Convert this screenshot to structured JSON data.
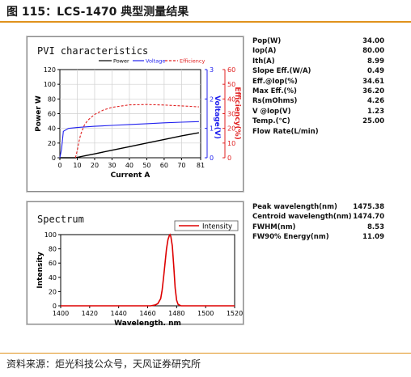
{
  "figure_title": "图 115：LCS-1470 典型测量结果",
  "source": "资料来源：炬光科技公众号，天风证券研究所",
  "colors": {
    "accent_rule": "#e0921c",
    "power": "#000000",
    "voltage": "#2020ee",
    "efficiency": "#e02020",
    "intensity": "#dd0000"
  },
  "pvi": {
    "title": "PVI characteristics",
    "parameters": [
      {
        "label": "Pop(W)",
        "value": "34.00"
      },
      {
        "label": "Iop(A)",
        "value": "80.00"
      },
      {
        "label": "Ith(A)",
        "value": "8.99"
      },
      {
        "label": "Slope Eff.(W/A)",
        "value": "0.49"
      },
      {
        "label": "Eff.@Iop(%)",
        "value": "34.61"
      },
      {
        "label": "Max Eff.(%)",
        "value": "36.20"
      },
      {
        "label": "Rs(mOhms)",
        "value": "4.26"
      },
      {
        "label": "V @Iop(V)",
        "value": "1.23"
      },
      {
        "label": "Temp.(℃)",
        "value": "25.00"
      },
      {
        "label": "Flow Rate(L/min)",
        "value": ""
      }
    ]
  },
  "spectrum": {
    "title": "Spectrum",
    "parameters": [
      {
        "label": "Peak wavelength(nm)",
        "value": "1475.38"
      },
      {
        "label": "Centroid wavelength(nm)",
        "value": "1474.70"
      },
      {
        "label": "FWHM(nm)",
        "value": "8.53"
      },
      {
        "label": "FW90% Energy(nm)",
        "value": "11.09"
      }
    ]
  },
  "chart_data": [
    {
      "type": "line",
      "title": "PVI characteristics",
      "xlabel": "Current A",
      "ylabel": "Power W",
      "y2label": "Voltage(V)",
      "y3label": "Efficiency(%)",
      "xlim": [
        0,
        81
      ],
      "ylim": [
        0,
        120
      ],
      "y2lim": [
        0,
        3
      ],
      "y3lim": [
        0,
        60
      ],
      "x_ticks": [
        0,
        10,
        20,
        30,
        40,
        50,
        60,
        70,
        81
      ],
      "y_ticks": [
        0,
        20,
        40,
        60,
        80,
        100,
        120
      ],
      "y2_ticks": [
        0,
        1,
        2,
        3
      ],
      "y3_ticks": [
        0,
        10,
        20,
        30,
        40,
        50,
        60
      ],
      "legend_position": "top",
      "grid": true,
      "series": [
        {
          "name": "Power",
          "axis": "left",
          "style": "solid",
          "color": "#000000",
          "x": [
            0,
            9,
            10,
            15,
            20,
            30,
            40,
            50,
            60,
            70,
            80
          ],
          "y": [
            0,
            0,
            0.5,
            3,
            5.3,
            10.2,
            15.1,
            20,
            24.9,
            29.8,
            34
          ]
        },
        {
          "name": "Voltage",
          "axis": "right1",
          "style": "solid",
          "color": "#2020ee",
          "x": [
            0,
            1,
            2,
            5,
            10,
            20,
            30,
            40,
            50,
            60,
            70,
            80
          ],
          "y": [
            0,
            0.3,
            0.9,
            1.0,
            1.03,
            1.07,
            1.1,
            1.13,
            1.16,
            1.19,
            1.21,
            1.23
          ]
        },
        {
          "name": "Efficiency",
          "axis": "right2",
          "style": "dashed",
          "color": "#e02020",
          "x": [
            9,
            10,
            11,
            12,
            14,
            16,
            20,
            25,
            30,
            40,
            50,
            60,
            70,
            80
          ],
          "y": [
            0,
            5,
            11,
            16,
            22,
            25.5,
            29.5,
            32.5,
            34.3,
            36,
            36.2,
            35.9,
            35.3,
            34.6
          ]
        }
      ]
    },
    {
      "type": "line",
      "title": "Spectrum",
      "xlabel": "Wavelength. nm",
      "ylabel": "Intensity",
      "xlim": [
        1400,
        1520
      ],
      "ylim": [
        0,
        100
      ],
      "x_ticks": [
        1400,
        1420,
        1440,
        1460,
        1480,
        1500,
        1520
      ],
      "y_ticks": [
        0,
        20,
        40,
        60,
        80,
        100
      ],
      "legend_position": "top-right",
      "grid": false,
      "series": [
        {
          "name": "Intensity",
          "color": "#dd0000",
          "x": [
            1400,
            1462,
            1465,
            1467,
            1469,
            1470,
            1471,
            1472,
            1473,
            1474,
            1475,
            1475.4,
            1476,
            1477,
            1478,
            1479,
            1480,
            1481,
            1483,
            1520
          ],
          "y": [
            0,
            0,
            1,
            3,
            10,
            22,
            40,
            60,
            80,
            93,
            99,
            100,
            97,
            84,
            55,
            25,
            8,
            2,
            0,
            0
          ]
        }
      ]
    }
  ]
}
